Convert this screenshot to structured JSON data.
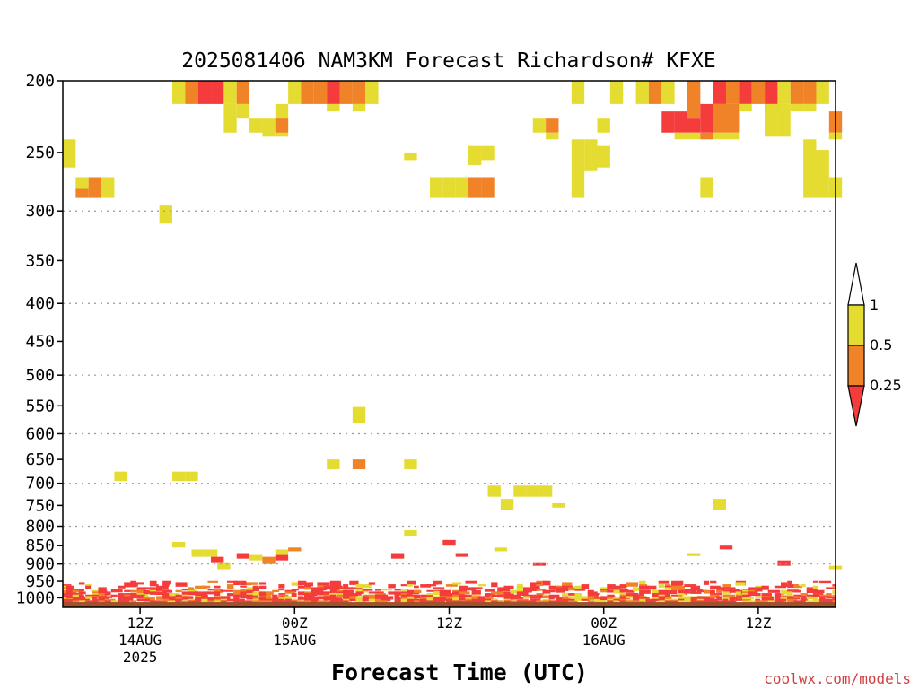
{
  "colors": {
    "yellow": "#e5dc32",
    "orange": "#f08228",
    "red": "#f53c3c",
    "ground": "#a0522d",
    "credit": "#d04040"
  },
  "chart_data": {
    "type": "heatmap",
    "title": "2025081406 NAM3KM Forecast Richardson# KFXE",
    "xlabel": "Forecast Time (UTC)",
    "ylabel": "",
    "credit": "coolwx.com/models",
    "y_axis": {
      "scale": "log-pressure",
      "inverted": true,
      "range_hpa": [
        1030,
        200
      ],
      "ticks": [
        200,
        250,
        300,
        350,
        400,
        450,
        500,
        550,
        600,
        650,
        700,
        750,
        800,
        850,
        900,
        950,
        1000
      ],
      "tick_labels": [
        "200",
        "250",
        "300",
        "350",
        "400",
        "450",
        "500",
        "550",
        "600",
        "650",
        "700",
        "750",
        "800",
        "850",
        "900",
        "950",
        "1000"
      ],
      "gridlines_hpa": [
        300,
        400,
        500,
        600,
        700,
        800,
        900
      ]
    },
    "x_axis": {
      "range_hours_from_init": [
        0,
        60
      ],
      "ticks": [
        {
          "hour": 6,
          "lines": [
            "12Z",
            "14AUG",
            "2025"
          ]
        },
        {
          "hour": 18,
          "lines": [
            "00Z",
            "15AUG"
          ]
        },
        {
          "hour": 30,
          "lines": [
            "12Z"
          ]
        },
        {
          "hour": 42,
          "lines": [
            "00Z",
            "16AUG"
          ]
        },
        {
          "hour": 54,
          "lines": [
            "12Z"
          ]
        }
      ]
    },
    "colorbar": {
      "labels": [
        "1",
        "0.5",
        "0.25"
      ],
      "bins": [
        {
          "range": "<0.25",
          "color": "red"
        },
        {
          "range": "0.25-0.5",
          "color": "orange"
        },
        {
          "range": "0.5-1",
          "color": "yellow"
        },
        {
          "range": ">1",
          "color": "white"
        }
      ]
    },
    "cells": [
      {
        "h": 9,
        "p1": 200,
        "p2": 215,
        "c": "y"
      },
      {
        "h": 10,
        "p1": 200,
        "p2": 215,
        "c": "o"
      },
      {
        "h": 11,
        "p1": 200,
        "p2": 215,
        "c": "r"
      },
      {
        "h": 12,
        "p1": 200,
        "p2": 215,
        "c": "r"
      },
      {
        "h": 13,
        "p1": 200,
        "p2": 215,
        "c": "y"
      },
      {
        "h": 14,
        "p1": 200,
        "p2": 215,
        "c": "o"
      },
      {
        "h": 13,
        "p1": 215,
        "p2": 235,
        "c": "y"
      },
      {
        "h": 14,
        "p1": 215,
        "p2": 225,
        "c": "y"
      },
      {
        "h": 15,
        "p1": 225,
        "p2": 235,
        "c": "y"
      },
      {
        "h": 16,
        "p1": 225,
        "p2": 238,
        "c": "y"
      },
      {
        "h": 17,
        "p1": 215,
        "p2": 238,
        "c": "y"
      },
      {
        "h": 17,
        "p1": 225,
        "p2": 235,
        "c": "o"
      },
      {
        "h": 18,
        "p1": 200,
        "p2": 215,
        "c": "y"
      },
      {
        "h": 19,
        "p1": 200,
        "p2": 215,
        "c": "o"
      },
      {
        "h": 20,
        "p1": 200,
        "p2": 215,
        "c": "o"
      },
      {
        "h": 21,
        "p1": 200,
        "p2": 215,
        "c": "r"
      },
      {
        "h": 22,
        "p1": 200,
        "p2": 215,
        "c": "o"
      },
      {
        "h": 23,
        "p1": 200,
        "p2": 215,
        "c": "o"
      },
      {
        "h": 24,
        "p1": 200,
        "p2": 215,
        "c": "y"
      },
      {
        "h": 21,
        "p1": 215,
        "p2": 220,
        "c": "y"
      },
      {
        "h": 23,
        "p1": 215,
        "p2": 220,
        "c": "y"
      },
      {
        "h": 0,
        "p1": 240,
        "p2": 262,
        "c": "y"
      },
      {
        "h": 1.5,
        "p1": 270,
        "p2": 280,
        "c": "y"
      },
      {
        "h": 1.5,
        "p1": 280,
        "p2": 288,
        "c": "o"
      },
      {
        "h": 2.5,
        "p1": 270,
        "p2": 288,
        "c": "o"
      },
      {
        "h": 3.5,
        "p1": 270,
        "p2": 288,
        "c": "y"
      },
      {
        "h": 8,
        "p1": 295,
        "p2": 312,
        "c": "y"
      },
      {
        "h": 27,
        "p1": 250,
        "p2": 256,
        "c": "y"
      },
      {
        "h": 29,
        "p1": 270,
        "p2": 288,
        "c": "y"
      },
      {
        "h": 30,
        "p1": 270,
        "p2": 288,
        "c": "y"
      },
      {
        "h": 31,
        "p1": 270,
        "p2": 288,
        "c": "y"
      },
      {
        "h": 32,
        "p1": 245,
        "p2": 260,
        "c": "y"
      },
      {
        "h": 33,
        "p1": 245,
        "p2": 256,
        "c": "y"
      },
      {
        "h": 32,
        "p1": 270,
        "p2": 288,
        "c": "o"
      },
      {
        "h": 33,
        "p1": 270,
        "p2": 288,
        "c": "o"
      },
      {
        "h": 37,
        "p1": 225,
        "p2": 235,
        "c": "y"
      },
      {
        "h": 38,
        "p1": 225,
        "p2": 235,
        "c": "o"
      },
      {
        "h": 38,
        "p1": 235,
        "p2": 240,
        "c": "y"
      },
      {
        "h": 40,
        "p1": 200,
        "p2": 215,
        "c": "y"
      },
      {
        "h": 40,
        "p1": 240,
        "p2": 288,
        "c": "y"
      },
      {
        "h": 41,
        "p1": 240,
        "p2": 265,
        "c": "y"
      },
      {
        "h": 42,
        "p1": 245,
        "p2": 262,
        "c": "y"
      },
      {
        "h": 42,
        "p1": 225,
        "p2": 235,
        "c": "y"
      },
      {
        "h": 43,
        "p1": 200,
        "p2": 215,
        "c": "y"
      },
      {
        "h": 45,
        "p1": 200,
        "p2": 215,
        "c": "y"
      },
      {
        "h": 46,
        "p1": 200,
        "p2": 215,
        "c": "o"
      },
      {
        "h": 47,
        "p1": 200,
        "p2": 215,
        "c": "y"
      },
      {
        "h": 47,
        "p1": 220,
        "p2": 235,
        "c": "r"
      },
      {
        "h": 48,
        "p1": 220,
        "p2": 235,
        "c": "r"
      },
      {
        "h": 49,
        "p1": 200,
        "p2": 225,
        "c": "o"
      },
      {
        "h": 49,
        "p1": 225,
        "p2": 235,
        "c": "r"
      },
      {
        "h": 50,
        "p1": 215,
        "p2": 235,
        "c": "r"
      },
      {
        "h": 48,
        "p1": 235,
        "p2": 240,
        "c": "y"
      },
      {
        "h": 49,
        "p1": 235,
        "p2": 240,
        "c": "y"
      },
      {
        "h": 50,
        "p1": 235,
        "p2": 240,
        "c": "o"
      },
      {
        "h": 51,
        "p1": 200,
        "p2": 215,
        "c": "r"
      },
      {
        "h": 51,
        "p1": 215,
        "p2": 235,
        "c": "o"
      },
      {
        "h": 52,
        "p1": 200,
        "p2": 215,
        "c": "o"
      },
      {
        "h": 52,
        "p1": 215,
        "p2": 235,
        "c": "o"
      },
      {
        "h": 51,
        "p1": 235,
        "p2": 240,
        "c": "y"
      },
      {
        "h": 52,
        "p1": 235,
        "p2": 240,
        "c": "y"
      },
      {
        "h": 53,
        "p1": 200,
        "p2": 215,
        "c": "r"
      },
      {
        "h": 54,
        "p1": 200,
        "p2": 215,
        "c": "o"
      },
      {
        "h": 53,
        "p1": 215,
        "p2": 220,
        "c": "y"
      },
      {
        "h": 50,
        "p1": 270,
        "p2": 288,
        "c": "y"
      },
      {
        "h": 55,
        "p1": 200,
        "p2": 215,
        "c": "r"
      },
      {
        "h": 55,
        "p1": 215,
        "p2": 220,
        "c": "r"
      },
      {
        "h": 56,
        "p1": 200,
        "p2": 215,
        "c": "y"
      },
      {
        "h": 57,
        "p1": 200,
        "p2": 215,
        "c": "o"
      },
      {
        "h": 58,
        "p1": 200,
        "p2": 215,
        "c": "o"
      },
      {
        "h": 59,
        "p1": 200,
        "p2": 215,
        "c": "y"
      },
      {
        "h": 55,
        "p1": 215,
        "p2": 238,
        "c": "y"
      },
      {
        "h": 56,
        "p1": 215,
        "p2": 238,
        "c": "y"
      },
      {
        "h": 57,
        "p1": 215,
        "p2": 220,
        "c": "y"
      },
      {
        "h": 58,
        "p1": 215,
        "p2": 220,
        "c": "y"
      },
      {
        "h": 60,
        "p1": 220,
        "p2": 235,
        "c": "o"
      },
      {
        "h": 60,
        "p1": 235,
        "p2": 240,
        "c": "y"
      },
      {
        "h": 58,
        "p1": 240,
        "p2": 288,
        "c": "y"
      },
      {
        "h": 59,
        "p1": 248,
        "p2": 288,
        "c": "y"
      },
      {
        "h": 60,
        "p1": 270,
        "p2": 288,
        "c": "y"
      },
      {
        "h": 4.5,
        "p1": 675,
        "p2": 695,
        "c": "y"
      },
      {
        "h": 9,
        "p1": 675,
        "p2": 695,
        "c": "y"
      },
      {
        "h": 10,
        "p1": 675,
        "p2": 695,
        "c": "y"
      },
      {
        "h": 9,
        "p1": 840,
        "p2": 855,
        "c": "y"
      },
      {
        "h": 23,
        "p1": 552,
        "p2": 580,
        "c": "y"
      },
      {
        "h": 21,
        "p1": 650,
        "p2": 670,
        "c": "y"
      },
      {
        "h": 23,
        "p1": 650,
        "p2": 670,
        "c": "o"
      },
      {
        "h": 27,
        "p1": 650,
        "p2": 670,
        "c": "y"
      },
      {
        "h": 33.5,
        "p1": 705,
        "p2": 730,
        "c": "y"
      },
      {
        "h": 34.5,
        "p1": 735,
        "p2": 760,
        "c": "y"
      },
      {
        "h": 35.5,
        "p1": 705,
        "p2": 730,
        "c": "y"
      },
      {
        "h": 36.5,
        "p1": 705,
        "p2": 730,
        "c": "y"
      },
      {
        "h": 37.5,
        "p1": 705,
        "p2": 730,
        "c": "y"
      },
      {
        "h": 38.5,
        "p1": 745,
        "p2": 755,
        "c": "y"
      },
      {
        "h": 51,
        "p1": 735,
        "p2": 760,
        "c": "y"
      },
      {
        "h": 27,
        "p1": 810,
        "p2": 825,
        "c": "y"
      },
      {
        "h": 30,
        "p1": 835,
        "p2": 850,
        "c": "r"
      },
      {
        "h": 31,
        "p1": 870,
        "p2": 880,
        "c": "r"
      },
      {
        "h": 34,
        "p1": 855,
        "p2": 865,
        "c": "y"
      },
      {
        "h": 10.5,
        "p1": 860,
        "p2": 880,
        "c": "y"
      },
      {
        "h": 11.5,
        "p1": 860,
        "p2": 880,
        "c": "y"
      },
      {
        "h": 12,
        "p1": 880,
        "p2": 895,
        "c": "r"
      },
      {
        "h": 12.5,
        "p1": 895,
        "p2": 915,
        "c": "y"
      },
      {
        "h": 14,
        "p1": 870,
        "p2": 885,
        "c": "r"
      },
      {
        "h": 15,
        "p1": 875,
        "p2": 890,
        "c": "y"
      },
      {
        "h": 16,
        "p1": 880,
        "p2": 900,
        "c": "o"
      },
      {
        "h": 17,
        "p1": 860,
        "p2": 875,
        "c": "y"
      },
      {
        "h": 17,
        "p1": 875,
        "p2": 890,
        "c": "r"
      },
      {
        "h": 18,
        "p1": 855,
        "p2": 865,
        "c": "o"
      },
      {
        "h": 26,
        "p1": 870,
        "p2": 885,
        "c": "r"
      },
      {
        "h": 37,
        "p1": 895,
        "p2": 905,
        "c": "r"
      },
      {
        "h": 49,
        "p1": 870,
        "p2": 878,
        "c": "y"
      },
      {
        "h": 51.5,
        "p1": 850,
        "p2": 860,
        "c": "r"
      },
      {
        "h": 56,
        "p1": 890,
        "p2": 905,
        "c": "r"
      },
      {
        "h": 60,
        "p1": 905,
        "p2": 915,
        "c": "y"
      }
    ],
    "surface_noise": {
      "p_top": 900,
      "p_bottom": 1013,
      "h_start": 0,
      "h_end": 60,
      "seed": 7
    },
    "ground": {
      "p_top": 1013,
      "p_bottom": 1030
    }
  }
}
